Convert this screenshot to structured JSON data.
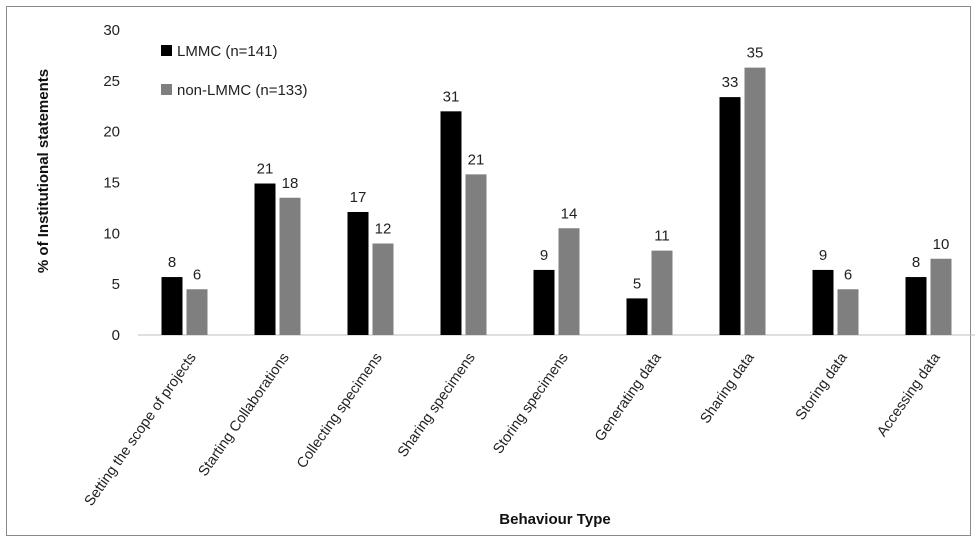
{
  "chart_data": {
    "type": "bar",
    "xlabel": "Behaviour Type",
    "ylabel": "% of Institutional statements",
    "ylim": [
      0,
      30
    ],
    "yticks": [
      0,
      5,
      10,
      15,
      20,
      25,
      30
    ],
    "grid": false,
    "legend_position": "top-left",
    "categories": [
      "Setting the scope of projects",
      "Starting Collaborations",
      "Collecting specimens",
      "Sharing specimens",
      "Storing specimens",
      "Generating data",
      "Sharing data",
      "Storing data",
      "Accessing data"
    ],
    "series": [
      {
        "name": "LMMC (n=141)",
        "color": "#000000",
        "values": [
          5.7,
          14.9,
          12.1,
          22.0,
          6.4,
          3.6,
          23.4,
          6.4,
          5.7
        ],
        "labels": [
          "8",
          "21",
          "17",
          "31",
          "9",
          "5",
          "33",
          "9",
          "8"
        ]
      },
      {
        "name": "non-LMMC (n=133)",
        "color": "#7f7f7f",
        "values": [
          4.5,
          13.5,
          9.0,
          15.8,
          10.5,
          8.3,
          26.3,
          4.5,
          7.5
        ],
        "labels": [
          "6",
          "18",
          "12",
          "21",
          "14",
          "11",
          "35",
          "6",
          "10"
        ]
      }
    ]
  }
}
